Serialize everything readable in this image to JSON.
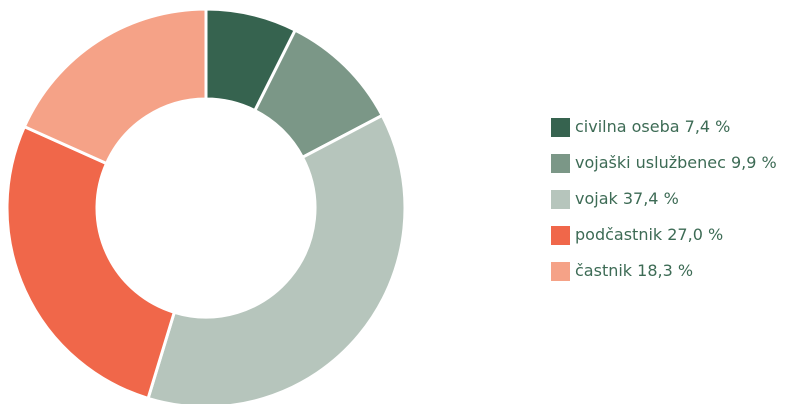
{
  "chart_data": {
    "type": "pie",
    "donut": true,
    "legend_position": "right",
    "slices": [
      {
        "label": "civilna oseba 7,4 %",
        "value": 7.4,
        "color": "#36634f"
      },
      {
        "label": "vojaški uslužbenec 9,9 %",
        "value": 9.9,
        "color": "#7b9787"
      },
      {
        "label": "vojak 37,4 %",
        "value": 37.4,
        "color": "#b6c5bc"
      },
      {
        "label": "podčastnik 27,0 %",
        "value": 27.0,
        "color": "#f0674a"
      },
      {
        "label": "častnik 18,3 %",
        "value": 18.3,
        "color": "#f5a287"
      }
    ]
  }
}
